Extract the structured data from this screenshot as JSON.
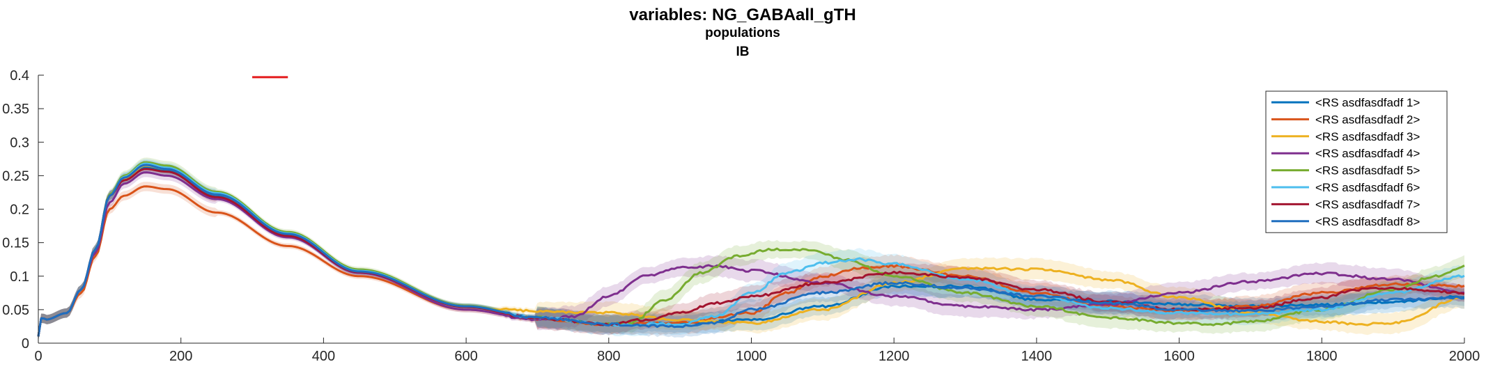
{
  "figure": {
    "title": "variables: NG_GABAall_gTH",
    "subtitle1": "populations",
    "subtitle2": "IB"
  },
  "chart_data": {
    "type": "line",
    "title": "variables: NG_GABAall_gTH",
    "subtitle": [
      "populations",
      "IB"
    ],
    "xlabel": "",
    "ylabel": "",
    "xlim": [
      0,
      2000
    ],
    "ylim": [
      0,
      0.4
    ],
    "xticks": [
      0,
      200,
      400,
      600,
      800,
      1000,
      1200,
      1400,
      1600,
      1800,
      2000
    ],
    "yticks": [
      0,
      0.05,
      0.1,
      0.15,
      0.2,
      0.25,
      0.3,
      0.35,
      0.4
    ],
    "xtick_labels": [
      "0",
      "200",
      "400",
      "600",
      "800",
      "1000",
      "1200",
      "1400",
      "1600",
      "1800",
      "2000"
    ],
    "ytick_labels": [
      "0",
      "0.05",
      "0.1",
      "0.15",
      "0.2",
      "0.25",
      "0.3",
      "0.35",
      "0.4"
    ],
    "grid": false,
    "legend_position": "top-right",
    "shaded_error_bands": true,
    "stray_mark": {
      "x": [
        300,
        350
      ],
      "y": [
        0.397,
        0.397
      ],
      "color": "#e41a1c"
    },
    "series": [
      {
        "name": "<RS asdfasdfadf 1>",
        "color": "#0072bd",
        "x": [
          0,
          5,
          10,
          40,
          60,
          80,
          100,
          120,
          150,
          180,
          250,
          350,
          450,
          600,
          700,
          800,
          900,
          1000,
          1100,
          1200,
          1300,
          1400,
          1500,
          1600,
          1700,
          1800,
          1900,
          2000
        ],
        "y": [
          0.01,
          0.04,
          0.035,
          0.045,
          0.08,
          0.14,
          0.22,
          0.245,
          0.262,
          0.258,
          0.22,
          0.16,
          0.105,
          0.055,
          0.038,
          0.028,
          0.03,
          0.035,
          0.055,
          0.085,
          0.085,
          0.065,
          0.062,
          0.058,
          0.055,
          0.057,
          0.062,
          0.07
        ]
      },
      {
        "name": "<RS asdfasdfadf 2>",
        "color": "#d95319",
        "x": [
          0,
          5,
          10,
          40,
          60,
          80,
          100,
          120,
          150,
          180,
          250,
          350,
          450,
          600,
          700,
          800,
          900,
          1000,
          1050,
          1100,
          1150,
          1200,
          1300,
          1400,
          1500,
          1600,
          1700,
          1800,
          1900,
          2000
        ],
        "y": [
          0.01,
          0.04,
          0.035,
          0.045,
          0.075,
          0.13,
          0.2,
          0.22,
          0.234,
          0.23,
          0.195,
          0.145,
          0.1,
          0.05,
          0.036,
          0.028,
          0.03,
          0.045,
          0.075,
          0.1,
          0.112,
          0.115,
          0.1,
          0.075,
          0.055,
          0.048,
          0.055,
          0.075,
          0.088,
          0.085
        ]
      },
      {
        "name": "<RS asdfasdfadf 3>",
        "color": "#edb120",
        "x": [
          0,
          5,
          10,
          40,
          60,
          80,
          100,
          120,
          150,
          180,
          250,
          350,
          450,
          600,
          650,
          700,
          800,
          900,
          1000,
          1100,
          1200,
          1300,
          1400,
          1500,
          1600,
          1700,
          1800,
          1850,
          1900,
          2000
        ],
        "y": [
          0.01,
          0.04,
          0.035,
          0.045,
          0.08,
          0.14,
          0.22,
          0.245,
          0.265,
          0.26,
          0.222,
          0.162,
          0.108,
          0.055,
          0.05,
          0.048,
          0.045,
          0.035,
          0.03,
          0.05,
          0.09,
          0.112,
          0.11,
          0.095,
          0.068,
          0.045,
          0.032,
          0.028,
          0.03,
          0.068
        ]
      },
      {
        "name": "<RS asdfasdfadf 4>",
        "color": "#7e2f8e",
        "x": [
          0,
          5,
          10,
          40,
          60,
          80,
          100,
          120,
          150,
          180,
          250,
          350,
          450,
          600,
          700,
          750,
          800,
          850,
          900,
          950,
          1000,
          1100,
          1200,
          1300,
          1400,
          1500,
          1600,
          1700,
          1800,
          1900,
          2000
        ],
        "y": [
          0.01,
          0.04,
          0.035,
          0.045,
          0.08,
          0.135,
          0.21,
          0.238,
          0.255,
          0.25,
          0.215,
          0.158,
          0.105,
          0.05,
          0.035,
          0.04,
          0.07,
          0.1,
          0.113,
          0.115,
          0.108,
          0.09,
          0.07,
          0.055,
          0.05,
          0.058,
          0.075,
          0.092,
          0.104,
          0.095,
          0.075
        ]
      },
      {
        "name": "<RS asdfasdfadf 5>",
        "color": "#77ac30",
        "x": [
          0,
          5,
          10,
          40,
          60,
          80,
          100,
          120,
          150,
          180,
          250,
          350,
          450,
          600,
          700,
          800,
          830,
          880,
          930,
          980,
          1030,
          1080,
          1130,
          1200,
          1300,
          1400,
          1500,
          1600,
          1650,
          1700,
          1800,
          1900,
          1960,
          2000
        ],
        "y": [
          0.01,
          0.04,
          0.035,
          0.045,
          0.08,
          0.14,
          0.222,
          0.25,
          0.27,
          0.265,
          0.226,
          0.166,
          0.11,
          0.056,
          0.038,
          0.028,
          0.03,
          0.065,
          0.105,
          0.13,
          0.14,
          0.14,
          0.125,
          0.1,
          0.075,
          0.055,
          0.038,
          0.03,
          0.028,
          0.032,
          0.05,
          0.08,
          0.1,
          0.115
        ]
      },
      {
        "name": "<RS asdfasdfadf 6>",
        "color": "#4dbeee",
        "x": [
          0,
          5,
          10,
          40,
          60,
          80,
          100,
          120,
          150,
          180,
          250,
          350,
          450,
          600,
          700,
          800,
          900,
          950,
          1000,
          1050,
          1100,
          1150,
          1200,
          1300,
          1400,
          1500,
          1600,
          1700,
          1800,
          1900,
          2000
        ],
        "y": [
          0.01,
          0.04,
          0.035,
          0.045,
          0.08,
          0.14,
          0.22,
          0.248,
          0.268,
          0.262,
          0.224,
          0.164,
          0.108,
          0.055,
          0.038,
          0.028,
          0.028,
          0.04,
          0.075,
          0.105,
          0.12,
          0.125,
          0.118,
          0.095,
          0.07,
          0.052,
          0.045,
          0.043,
          0.05,
          0.075,
          0.1
        ]
      },
      {
        "name": "<RS asdfasdfadf 7>",
        "color": "#a2142f",
        "x": [
          0,
          5,
          10,
          40,
          60,
          80,
          100,
          120,
          150,
          180,
          250,
          350,
          450,
          600,
          700,
          800,
          850,
          900,
          950,
          1000,
          1100,
          1200,
          1300,
          1400,
          1500,
          1600,
          1700,
          1800,
          1850,
          1900,
          2000
        ],
        "y": [
          0.01,
          0.04,
          0.035,
          0.045,
          0.08,
          0.14,
          0.22,
          0.243,
          0.26,
          0.256,
          0.218,
          0.16,
          0.106,
          0.054,
          0.037,
          0.028,
          0.035,
          0.045,
          0.06,
          0.07,
          0.09,
          0.105,
          0.098,
          0.08,
          0.062,
          0.05,
          0.052,
          0.068,
          0.08,
          0.082,
          0.075
        ]
      },
      {
        "name": "<RS asdfasdfadf 8>",
        "color": "#1f6ebf",
        "x": [
          0,
          5,
          10,
          40,
          60,
          80,
          100,
          120,
          150,
          180,
          250,
          350,
          450,
          600,
          700,
          800,
          900,
          950,
          1000,
          1100,
          1200,
          1300,
          1400,
          1500,
          1600,
          1700,
          1800,
          1900,
          2000
        ],
        "y": [
          0.01,
          0.04,
          0.035,
          0.045,
          0.08,
          0.14,
          0.22,
          0.247,
          0.266,
          0.26,
          0.222,
          0.163,
          0.107,
          0.055,
          0.038,
          0.028,
          0.025,
          0.03,
          0.05,
          0.075,
          0.09,
          0.082,
          0.07,
          0.06,
          0.05,
          0.048,
          0.055,
          0.065,
          0.068
        ]
      }
    ]
  }
}
